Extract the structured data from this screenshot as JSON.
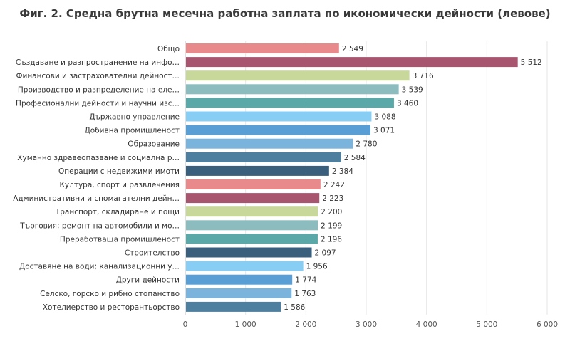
{
  "chart_data": {
    "type": "bar",
    "orientation": "horizontal",
    "title": "Фиг. 2. Средна брутна месечна работна заплата по икономически дейности (левове)",
    "xlabel": "",
    "ylabel": "",
    "xlim": [
      0,
      6000
    ],
    "x_ticks": [
      0,
      1000,
      2000,
      3000,
      4000,
      5000,
      6000
    ],
    "x_tick_labels": [
      "0",
      "1 000",
      "2 000",
      "3 000",
      "4 000",
      "5 000",
      "6 000"
    ],
    "grid": true,
    "categories": [
      "Общо",
      "Създаване и разпространение на инфо…",
      "Финансови и застрахователни дейност…",
      "Производство и разпределение на еле…",
      "Професионални дейности и научни изс…",
      "Държавно управление",
      "Добивна промишленост",
      "Образование",
      "Хуманно здравеопазване и социална р…",
      "Операции с недвижими имоти",
      "Култура, спорт и развлечения",
      "Административни и спомагателни дейн…",
      "Транспорт, складиране и пощи",
      "Търговия; ремонт на автомобили и мо…",
      "Преработваща промишленост",
      "Строителство",
      "Доставяне на води; канализационни у…",
      "Други дейности",
      "Селско, горско и рибно стопанство",
      "Хотелиерство и ресторантьорство"
    ],
    "values": [
      2549,
      5512,
      3716,
      3539,
      3460,
      3088,
      3071,
      2780,
      2584,
      2384,
      2242,
      2223,
      2200,
      2199,
      2196,
      2097,
      1956,
      1774,
      1763,
      1586
    ],
    "value_labels": [
      "2 549",
      "5 512",
      "3 716",
      "3 539",
      "3 460",
      "3 088",
      "3 071",
      "2 780",
      "2 584",
      "2 384",
      "2 242",
      "2 223",
      "2 200",
      "2 199",
      "2 196",
      "2 097",
      "1 956",
      "1 774",
      "1 763",
      "1 586"
    ],
    "colors": [
      "#e8898b",
      "#a8566f",
      "#c8d89a",
      "#8cbcbe",
      "#5aa8a8",
      "#88cdf3",
      "#5a9ed6",
      "#7ab4dc",
      "#4e7f9e",
      "#3a5f7c",
      "#e8898b",
      "#a8566f",
      "#c8d89a",
      "#8cbcbe",
      "#5aa8a8",
      "#3a5f7c",
      "#88cdf3",
      "#5a9ed6",
      "#7ab4dc",
      "#4e7f9e"
    ]
  }
}
